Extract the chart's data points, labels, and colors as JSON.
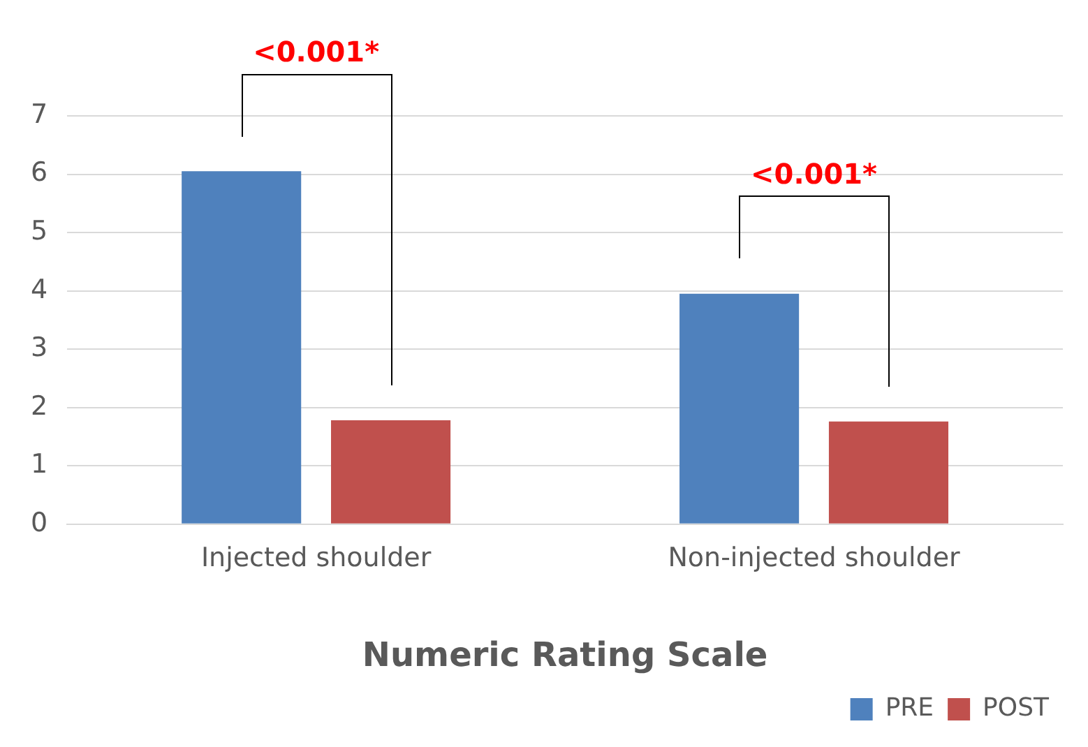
{
  "chart_data": {
    "type": "bar",
    "xlabel": "Numeric Rating Scale",
    "categories": [
      "Injected shoulder",
      "Non-injected shoulder"
    ],
    "series": [
      {
        "name": "PRE",
        "color": "#4f81bd",
        "values": [
          6.05,
          3.95
        ]
      },
      {
        "name": "POST",
        "color": "#c0504d",
        "values": [
          1.78,
          1.76
        ]
      }
    ],
    "ylim": [
      0,
      7
    ],
    "yticks": [
      0,
      1,
      2,
      3,
      4,
      5,
      6,
      7
    ],
    "grid": "y",
    "legend": "bottom right",
    "annotations": [
      "<0.001*",
      "<0.001*"
    ]
  }
}
